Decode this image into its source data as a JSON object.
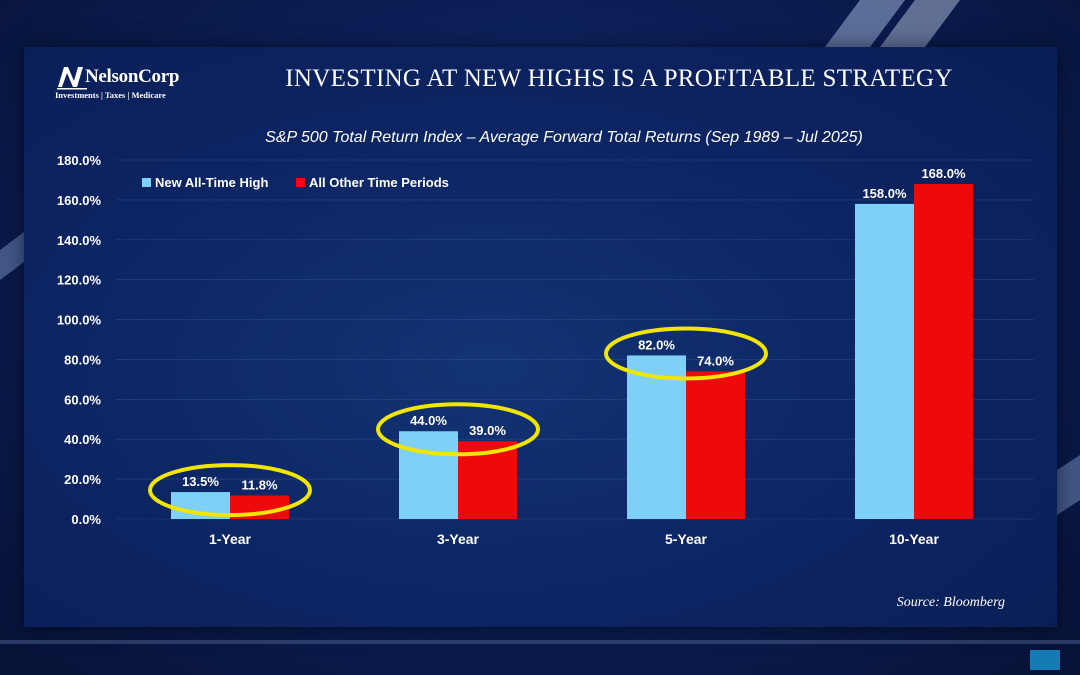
{
  "brand": {
    "name": "NelsonCorp",
    "tagline": "Investments | Taxes | Medicare"
  },
  "headline": "INVESTING AT NEW HIGHS IS A PROFITABLE STRATEGY",
  "source": "Source: Bloomberg",
  "colors": {
    "series_new_high": "#7fd0f7",
    "series_other": "#ee0a0a",
    "highlight_ellipse": "#f2e600",
    "panel": "#0c2462"
  },
  "chart_data": {
    "type": "bar",
    "title": "S&P 500 Total Return Index – Average Forward Total Returns (Sep 1989 – Jul 2025)",
    "xlabel": "",
    "ylabel": "",
    "categories": [
      "1-Year",
      "3-Year",
      "5-Year",
      "10-Year"
    ],
    "series": [
      {
        "name": "New All-Time High",
        "values": [
          13.5,
          44.0,
          82.0,
          158.0
        ],
        "labels": [
          "13.5%",
          "44.0%",
          "82.0%",
          "158.0%"
        ]
      },
      {
        "name": "All Other Time Periods",
        "values": [
          11.8,
          39.0,
          74.0,
          168.0
        ],
        "labels": [
          "11.8%",
          "39.0%",
          "74.0%",
          "168.0%"
        ]
      }
    ],
    "ylim": [
      0,
      180
    ],
    "yticks": [
      "0.0%",
      "20.0%",
      "40.0%",
      "60.0%",
      "80.0%",
      "100.0%",
      "120.0%",
      "140.0%",
      "160.0%",
      "180.0%"
    ],
    "grid": true,
    "legend": "top-left",
    "highlighted_categories": [
      "1-Year",
      "3-Year",
      "5-Year"
    ]
  }
}
